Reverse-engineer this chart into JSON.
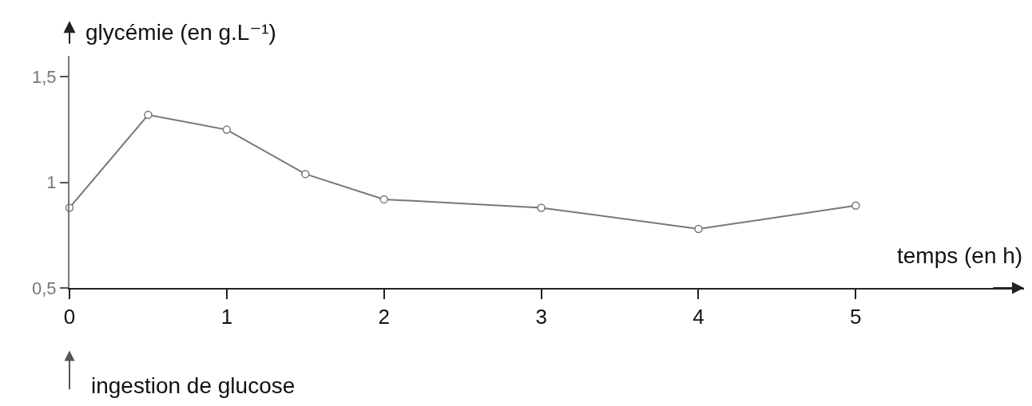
{
  "chart_data": {
    "type": "line",
    "xlabel": "temps (en h)",
    "ylabel": "glycémie (en g.L⁻¹)",
    "x": [
      0,
      0.5,
      1,
      1.5,
      2,
      3,
      4,
      5
    ],
    "values": [
      0.88,
      1.32,
      1.25,
      1.04,
      0.92,
      0.88,
      0.78,
      0.89
    ],
    "color": "#777777",
    "marker": "circle",
    "line_style": "solid",
    "grid": false,
    "legend": false,
    "xlim": [
      0,
      6.07
    ],
    "xticks": [
      0,
      1,
      2,
      3,
      4,
      5
    ],
    "ylim": [
      0.5,
      1.6
    ],
    "yticks": [
      {
        "value": 0.5,
        "label": "0,5"
      },
      1,
      {
        "value": 1.5,
        "label": "1,5"
      }
    ],
    "annotations": [
      "ingestion de glucose"
    ]
  }
}
